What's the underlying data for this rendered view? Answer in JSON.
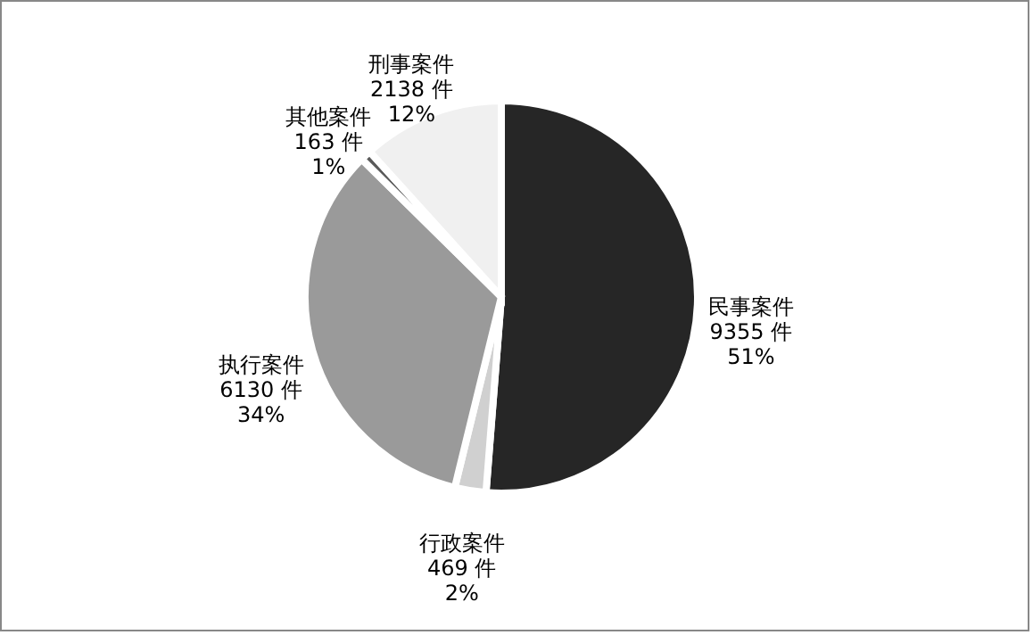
{
  "chart_data": {
    "type": "pie",
    "categories": [
      "民事案件",
      "行政案件",
      "执行案件",
      "其他案件",
      "刑事案件"
    ],
    "values": [
      9355,
      469,
      6130,
      163,
      2138
    ],
    "colors": [
      "#262626",
      "#d0d0d0",
      "#9a9a9a",
      "#5a5a5a",
      "#f0f0f0"
    ],
    "value_labels": [
      "9355 件\n51%",
      "469 件\n2%",
      "6130 件\n34%",
      "163 件\n1%",
      "2138 件\n12%"
    ],
    "legend": false
  }
}
